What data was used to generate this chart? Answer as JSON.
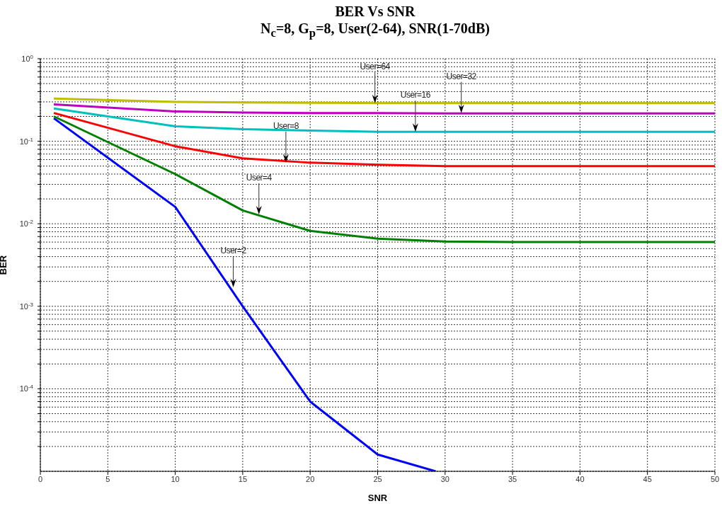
{
  "chart_data": {
    "type": "line",
    "title": "BER  Vs  SNR",
    "subtitle": "N$_{c}$=8, G$_{p}$=8, User(2-64), SNR(1-70dB)",
    "xlabel": "SNR",
    "ylabel": "BER",
    "log": "y",
    "grid": true,
    "x": [
      1,
      10,
      15,
      20,
      25,
      30,
      35,
      40,
      45,
      50
    ],
    "xlim": [
      0,
      50
    ],
    "xticks": [
      0,
      5,
      10,
      15,
      20,
      25,
      30,
      35,
      40,
      45,
      50
    ],
    "ylim": [
      1e-05,
      1
    ],
    "yticks": [
      {
        "value": 2e-05,
        "label": null
      },
      {
        "value": 3e-05,
        "label": null
      },
      {
        "value": 4e-05,
        "label": null
      },
      {
        "value": 5e-05,
        "label": null
      },
      {
        "value": 6e-05,
        "label": null
      },
      {
        "value": 7e-05,
        "label": null
      },
      {
        "value": 8e-05,
        "label": null
      },
      {
        "value": 9e-05,
        "label": null
      },
      {
        "value": 0.0001,
        "label": "10$^{-4}$"
      },
      {
        "value": 0.0002,
        "label": null
      },
      {
        "value": 0.0003,
        "label": null
      },
      {
        "value": 0.0004,
        "label": null
      },
      {
        "value": 0.0005,
        "label": null
      },
      {
        "value": 0.0006,
        "label": null
      },
      {
        "value": 0.0007,
        "label": null
      },
      {
        "value": 0.0008,
        "label": null
      },
      {
        "value": 0.0009,
        "label": null
      },
      {
        "value": 0.001,
        "label": "10$^{-3}$"
      },
      {
        "value": 0.002,
        "label": null
      },
      {
        "value": 0.003,
        "label": null
      },
      {
        "value": 0.004,
        "label": null
      },
      {
        "value": 0.005,
        "label": null
      },
      {
        "value": 0.006,
        "label": null
      },
      {
        "value": 0.007,
        "label": null
      },
      {
        "value": 0.008,
        "label": null
      },
      {
        "value": 0.009,
        "label": null
      },
      {
        "value": 0.01,
        "label": "10$^{-2}$"
      },
      {
        "value": 0.02,
        "label": null
      },
      {
        "value": 0.03,
        "label": null
      },
      {
        "value": 0.04,
        "label": null
      },
      {
        "value": 0.05,
        "label": null
      },
      {
        "value": 0.06,
        "label": null
      },
      {
        "value": 0.07,
        "label": null
      },
      {
        "value": 0.08,
        "label": null
      },
      {
        "value": 0.09,
        "label": null
      },
      {
        "value": 0.1,
        "label": "10$^{-1}$"
      },
      {
        "value": 0.2,
        "label": null
      },
      {
        "value": 0.3,
        "label": null
      },
      {
        "value": 0.4,
        "label": null
      },
      {
        "value": 0.5,
        "label": null
      },
      {
        "value": 0.6,
        "label": null
      },
      {
        "value": 0.7,
        "label": null
      },
      {
        "value": 0.8,
        "label": null
      },
      {
        "value": 0.9,
        "label": null
      },
      {
        "value": 1,
        "label": "10$^{0}$"
      }
    ],
    "series": [
      {
        "color": "#0000ff",
        "x": [
          1,
          10,
          15,
          20,
          25,
          29.3
        ],
        "values": [
          0.19,
          0.016,
          0.001,
          7e-05,
          1.6e-05,
          1e-05
        ]
      },
      {
        "color": "#008000",
        "values": [
          0.2,
          0.04,
          0.0145,
          0.0082,
          0.0066,
          0.0061,
          0.006,
          0.006,
          0.006,
          0.006
        ]
      },
      {
        "color": "#ff0000",
        "values": [
          0.22,
          0.087,
          0.062,
          0.055,
          0.052,
          0.05,
          0.05,
          0.05,
          0.05,
          0.05
        ]
      },
      {
        "color": "#00bfbf",
        "values": [
          0.25,
          0.152,
          0.14,
          0.135,
          0.13,
          0.13,
          0.13,
          0.13,
          0.13,
          0.13
        ]
      },
      {
        "color": "#bf00bf",
        "values": [
          0.28,
          0.23,
          0.223,
          0.22,
          0.22,
          0.218,
          0.217,
          0.217,
          0.217,
          0.217
        ]
      },
      {
        "color": "#bfbf00",
        "values": [
          0.33,
          0.3,
          0.295,
          0.293,
          0.29,
          0.29,
          0.29,
          0.29,
          0.29,
          0.29
        ]
      }
    ],
    "annotations": [
      {
        "text": "User=64",
        "x": 24.8,
        "y": 0.29
      },
      {
        "text": "User=32",
        "x": 31.2,
        "y": 0.22
      },
      {
        "text": "User=16",
        "x": 27.8,
        "y": 0.13
      },
      {
        "text": "User=8",
        "x": 18.2,
        "y": 0.055
      },
      {
        "text": "User=4",
        "x": 16.2,
        "y": 0.013
      },
      {
        "text": "User=2",
        "x": 14.3,
        "y": 0.0017
      }
    ]
  }
}
